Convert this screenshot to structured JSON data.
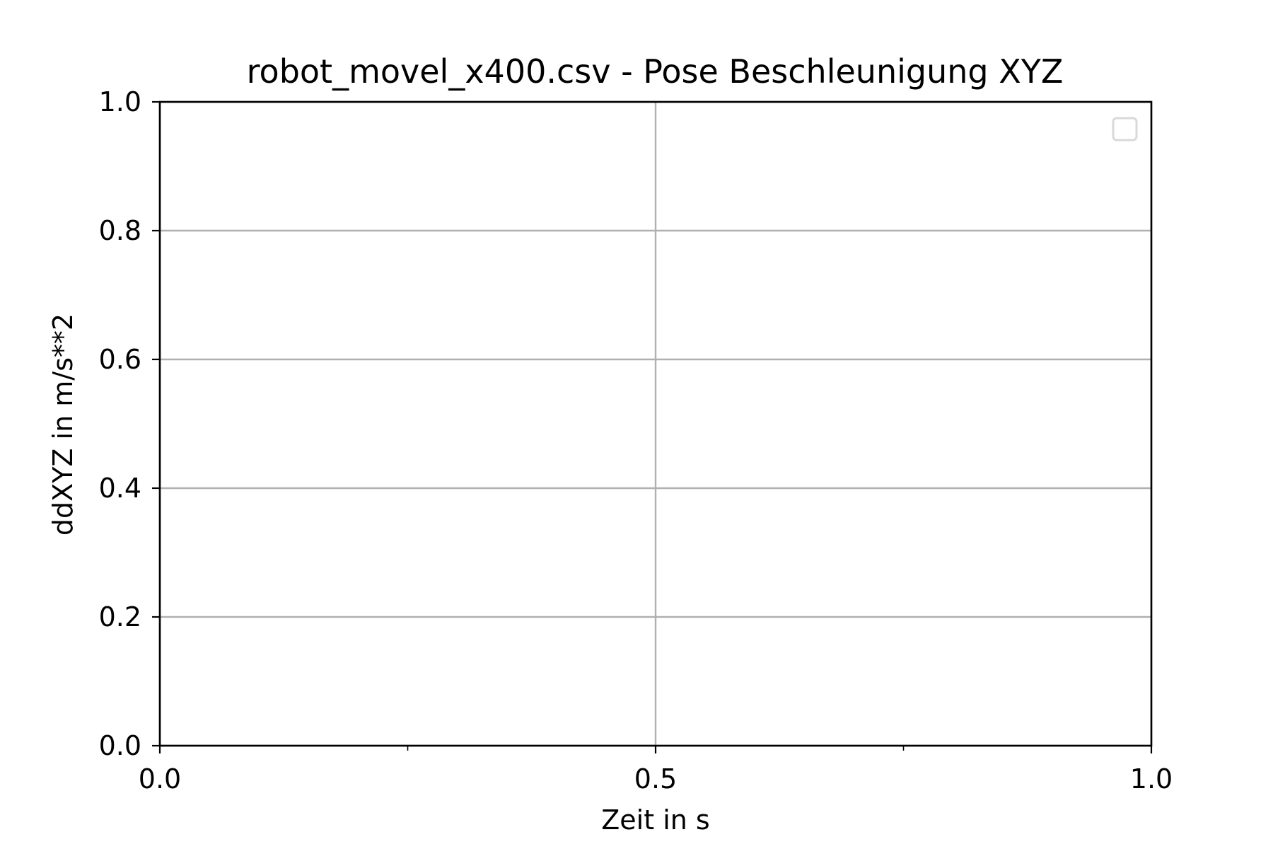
{
  "chart_data": {
    "type": "line",
    "title": "robot_movel_x400.csv - Pose Beschleunigung XYZ",
    "xlabel": "Zeit in s",
    "ylabel": "ddXYZ in m/s**2",
    "xlim": [
      0.0,
      1.0
    ],
    "ylim": [
      0.0,
      1.0
    ],
    "x_ticks": [
      "0.0",
      "0.5",
      "1.0"
    ],
    "x_tick_values": [
      0.0,
      0.5,
      1.0
    ],
    "x_minor_tick_values": [
      0.25,
      0.75
    ],
    "y_ticks": [
      "0.0",
      "0.2",
      "0.4",
      "0.6",
      "0.8",
      "1.0"
    ],
    "y_tick_values": [
      0.0,
      0.2,
      0.4,
      0.6,
      0.8,
      1.0
    ],
    "grid": true,
    "legend_position": "top-right",
    "legend_entries": [],
    "series": []
  }
}
